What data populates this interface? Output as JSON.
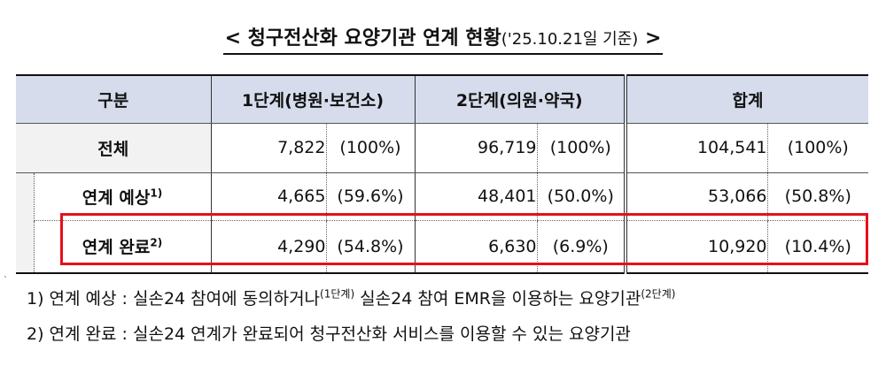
{
  "title": {
    "main": "< 청구전산화 요양기관 연계 현황",
    "note": "('25.10.21일 기준)",
    "suffix": " >"
  },
  "table": {
    "headers": {
      "category": "구분",
      "stage1": "1단계(병원·보건소)",
      "stage2": "2단계(의원·약국)",
      "total": "합계"
    },
    "rows": [
      {
        "label": "전체",
        "sup": "",
        "s1_count": "7,822",
        "s1_pct": "(100%)",
        "s2_count": "96,719",
        "s2_pct": "(100%)",
        "t_count": "104,541",
        "t_pct": "(100%)"
      },
      {
        "label": "연계 예상",
        "sup": "1)",
        "s1_count": "4,665",
        "s1_pct": "(59.6%)",
        "s2_count": "48,401",
        "s2_pct": "(50.0%)",
        "t_count": "53,066",
        "t_pct": "(50.8%)"
      },
      {
        "label": "연계 완료",
        "sup": "2)",
        "s1_count": "4,290",
        "s1_pct": "(54.8%)",
        "s2_count": "6,630",
        "s2_pct": "(6.9%)",
        "t_count": "10,920",
        "t_pct": "(10.4%)"
      }
    ]
  },
  "highlight_color": "#e5101b",
  "footnotes": {
    "fn1": {
      "a": "1) 연계 예상 : 실손24 참여에 동의하거나",
      "a_sup": "(1단계)",
      "b": " 실손24 참여 EMR을 이용하는 요양기관",
      "b_sup": "(2단계)"
    },
    "fn2": "2) 연계 완료 : 실손24 연계가 완료되어 청구전산화 서비스를 이용할 수 있는 요양기관"
  }
}
